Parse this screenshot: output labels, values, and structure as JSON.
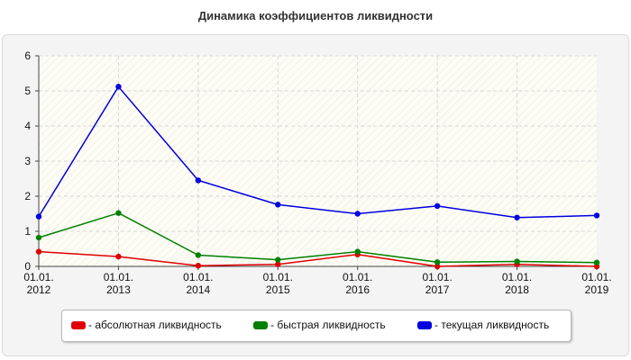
{
  "title": "Динамика коэффициентов ликвидности",
  "chart_data": {
    "type": "line",
    "x": [
      "01.01.|2012",
      "01.01.|2013",
      "01.01.|2014",
      "01.01.|2015",
      "01.01.|2016",
      "01.01.|2017",
      "01.01.|2018",
      "01.01.|2019"
    ],
    "x_tick_labels": [
      [
        "01.01.",
        "2012"
      ],
      [
        "01.01.",
        "2013"
      ],
      [
        "01.01.",
        "2014"
      ],
      [
        "01.01.",
        "2015"
      ],
      [
        "01.01.",
        "2016"
      ],
      [
        "01.01.",
        "2017"
      ],
      [
        "01.01.",
        "2018"
      ],
      [
        "01.01.",
        "2019"
      ]
    ],
    "ylim": [
      0,
      6
    ],
    "y_ticks": [
      0,
      1,
      2,
      3,
      4,
      5,
      6
    ],
    "grid": true,
    "legend_position": "bottom",
    "series": [
      {
        "name": "- абсолютная ликвидность",
        "color": "#e00000",
        "values": [
          0.42,
          0.28,
          0.02,
          0.06,
          0.34,
          0.0,
          0.06,
          0.0
        ]
      },
      {
        "name": "- быстрая ликвидность",
        "color": "#008000",
        "values": [
          0.82,
          1.52,
          0.32,
          0.19,
          0.42,
          0.12,
          0.14,
          0.11
        ]
      },
      {
        "name": "- текущая ликвидность",
        "color": "#0000e0",
        "values": [
          1.42,
          5.12,
          2.45,
          1.76,
          1.5,
          1.72,
          1.39,
          1.45
        ]
      }
    ]
  }
}
